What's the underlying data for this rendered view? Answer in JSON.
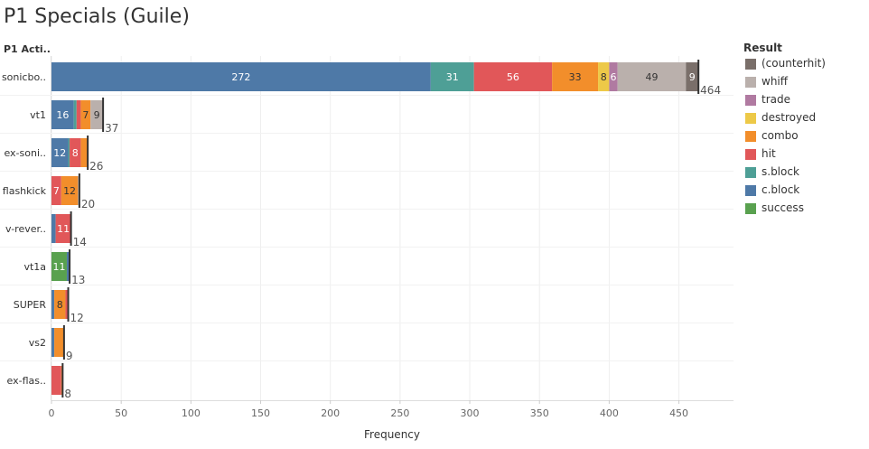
{
  "title": "P1 Specials (Guile)",
  "row_header": "P1 Acti..",
  "legend_title": "Result",
  "legend": [
    {
      "label": "(counterhit)",
      "color": "#7a6f6a"
    },
    {
      "label": "whiff",
      "color": "#bab0ac"
    },
    {
      "label": "trade",
      "color": "#b07aa1"
    },
    {
      "label": "destroyed",
      "color": "#edc948"
    },
    {
      "label": "combo",
      "color": "#f28e2b"
    },
    {
      "label": "hit",
      "color": "#e15759"
    },
    {
      "label": "s.block",
      "color": "#4e9f96"
    },
    {
      "label": "c.block",
      "color": "#4e79a7"
    },
    {
      "label": "success",
      "color": "#59a14f"
    }
  ],
  "chart_data": {
    "type": "bar",
    "orientation": "horizontal",
    "stacked": true,
    "title": "P1 Specials (Guile)",
    "xlabel": "Frequency",
    "ylabel": "P1 Acti..",
    "xlim": [
      0,
      480
    ],
    "xticks": [
      0,
      50,
      100,
      150,
      200,
      250,
      300,
      350,
      400,
      450
    ],
    "grid": "vertical",
    "legend_position": "right",
    "rows": [
      {
        "label": "sonicbo..",
        "total": 464,
        "segments": [
          {
            "series": "c.block",
            "value": 272,
            "show": "272"
          },
          {
            "series": "s.block",
            "value": 31,
            "show": "31"
          },
          {
            "series": "hit",
            "value": 56,
            "show": "56"
          },
          {
            "series": "combo",
            "value": 33,
            "show": "33"
          },
          {
            "series": "destroyed",
            "value": 8,
            "show": "8"
          },
          {
            "series": "trade",
            "value": 6,
            "show": "6"
          },
          {
            "series": "whiff",
            "value": 49,
            "show": "49"
          },
          {
            "series": "(counterhit)",
            "value": 9,
            "show": "9"
          }
        ]
      },
      {
        "label": "vt1",
        "total": 37,
        "segments": [
          {
            "series": "c.block",
            "value": 16,
            "show": "16"
          },
          {
            "series": "s.block",
            "value": 2
          },
          {
            "series": "hit",
            "value": 3
          },
          {
            "series": "combo",
            "value": 7,
            "show": "7"
          },
          {
            "series": "whiff",
            "value": 9,
            "show": "9"
          }
        ]
      },
      {
        "label": "ex-soni..",
        "total": 26,
        "segments": [
          {
            "series": "c.block",
            "value": 12,
            "show": "12"
          },
          {
            "series": "s.block",
            "value": 1
          },
          {
            "series": "hit",
            "value": 8,
            "show": "8"
          },
          {
            "series": "combo",
            "value": 5
          }
        ]
      },
      {
        "label": "flashkick",
        "total": 20,
        "segments": [
          {
            "series": "hit",
            "value": 7,
            "show": "7"
          },
          {
            "series": "combo",
            "value": 12,
            "show": "12"
          },
          {
            "series": "whiff",
            "value": 1
          }
        ]
      },
      {
        "label": "v-rever..",
        "total": 14,
        "segments": [
          {
            "series": "c.block",
            "value": 3
          },
          {
            "series": "hit",
            "value": 11,
            "show": "11"
          }
        ]
      },
      {
        "label": "vt1a",
        "total": 13,
        "segments": [
          {
            "series": "success",
            "value": 11,
            "show": "11"
          },
          {
            "series": "c.block",
            "value": 2
          }
        ]
      },
      {
        "label": "SUPER",
        "total": 12,
        "segments": [
          {
            "series": "c.block",
            "value": 2
          },
          {
            "series": "combo",
            "value": 8,
            "show": "8"
          },
          {
            "series": "hit",
            "value": 2
          }
        ]
      },
      {
        "label": "vs2",
        "total": 9,
        "segments": [
          {
            "series": "c.block",
            "value": 2
          },
          {
            "series": "combo",
            "value": 7
          }
        ]
      },
      {
        "label": "ex-flas..",
        "total": 8,
        "segments": [
          {
            "series": "hit",
            "value": 7
          },
          {
            "series": "combo",
            "value": 1
          }
        ]
      }
    ]
  }
}
